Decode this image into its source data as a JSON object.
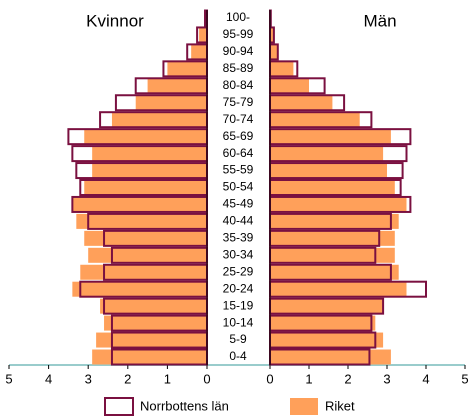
{
  "chart_data": {
    "type": "pyramid",
    "categories": [
      "100-",
      "95-99",
      "90-94",
      "85-89",
      "80-84",
      "75-79",
      "70-74",
      "65-69",
      "60-64",
      "55-59",
      "50-54",
      "45-49",
      "40-44",
      "35-39",
      "30-34",
      "25-29",
      "20-24",
      "15-19",
      "10-14",
      "5-9",
      "0-4"
    ],
    "series": [
      {
        "name": "Norrbottens län",
        "color": "#7a1040",
        "style": "outline"
      },
      {
        "name": "Riket",
        "color": "#ffa05a",
        "style": "fill"
      }
    ],
    "panels": [
      {
        "title": "Kvinnor",
        "xlim": [
          5,
          0
        ],
        "xticks": [
          5,
          4,
          3,
          2,
          1,
          0
        ],
        "values": [
          [
            0.05,
            0.25,
            0.5,
            1.1,
            1.8,
            2.3,
            2.7,
            3.5,
            3.4,
            3.3,
            3.2,
            3.4,
            3.0,
            2.6,
            2.4,
            2.6,
            3.2,
            2.6,
            2.4,
            2.4,
            2.4
          ],
          [
            0.05,
            0.2,
            0.4,
            1.0,
            1.5,
            1.8,
            2.4,
            3.1,
            2.9,
            2.9,
            3.1,
            3.4,
            3.3,
            3.1,
            3.0,
            3.2,
            3.4,
            2.7,
            2.6,
            2.8,
            2.9
          ]
        ]
      },
      {
        "title": "Män",
        "xlim": [
          0,
          5
        ],
        "xticks": [
          0,
          1,
          2,
          3,
          4,
          5
        ],
        "values": [
          [
            0.02,
            0.1,
            0.2,
            0.7,
            1.4,
            1.9,
            2.6,
            3.6,
            3.5,
            3.4,
            3.35,
            3.6,
            3.1,
            2.8,
            2.7,
            3.1,
            4.0,
            2.9,
            2.6,
            2.7,
            2.55
          ],
          [
            0.02,
            0.1,
            0.2,
            0.6,
            1.0,
            1.6,
            2.3,
            3.1,
            2.9,
            3.0,
            3.2,
            3.5,
            3.3,
            3.2,
            3.2,
            3.3,
            3.5,
            2.9,
            2.7,
            2.9,
            3.1
          ]
        ]
      }
    ]
  }
}
